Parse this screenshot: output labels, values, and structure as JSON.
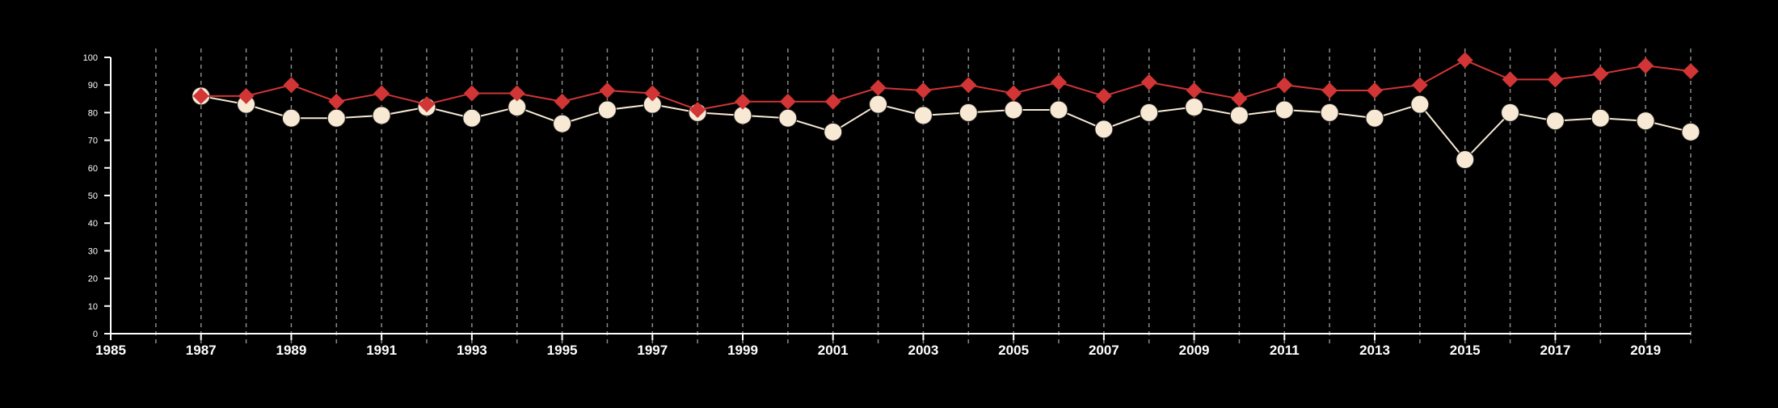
{
  "chart_data": {
    "type": "line",
    "title": "",
    "xlabel": "",
    "ylabel": "",
    "xlim": [
      1985,
      2020
    ],
    "ylim": [
      0,
      100
    ],
    "grid": "vertical dashed lines at each year",
    "legend": "none",
    "x": [
      1987,
      1988,
      1989,
      1990,
      1991,
      1992,
      1993,
      1994,
      1995,
      1996,
      1997,
      1998,
      1999,
      2000,
      2001,
      2002,
      2003,
      2004,
      2005,
      2006,
      2007,
      2008,
      2009,
      2010,
      2011,
      2012,
      2013,
      2014,
      2015,
      2016,
      2017,
      2018,
      2019,
      2020
    ],
    "series": [
      {
        "marker": "circle",
        "color": "#f7e9d4",
        "values": [
          86,
          83,
          78,
          78,
          79,
          82,
          78,
          82,
          76,
          81,
          83,
          80,
          79,
          78,
          73,
          83,
          79,
          80,
          81,
          81,
          74,
          80,
          82,
          79,
          81,
          80,
          78,
          83,
          63,
          80,
          77,
          78,
          77,
          73
        ]
      },
      {
        "marker": "diamond",
        "color": "#d13535",
        "values": [
          86,
          86,
          90,
          84,
          87,
          83,
          87,
          87,
          84,
          88,
          87,
          81,
          84,
          84,
          84,
          89,
          88,
          90,
          87,
          91,
          86,
          91,
          88,
          85,
          90,
          88,
          88,
          90,
          99,
          92,
          92,
          94,
          97,
          95
        ]
      }
    ],
    "yticks": [
      0,
      10,
      20,
      30,
      40,
      50,
      60,
      70,
      80,
      90,
      100
    ],
    "xticks": [
      "1985",
      "1987",
      "1989",
      "1991",
      "1993",
      "1995",
      "1997",
      "1999",
      "2001",
      "2003",
      "2005",
      "2007",
      "2009",
      "2011",
      "2013",
      "2015",
      "2017",
      "2019"
    ],
    "colors": {
      "background": "#000000",
      "axis": "#ffffff",
      "grid": "#8a8a8a"
    }
  }
}
